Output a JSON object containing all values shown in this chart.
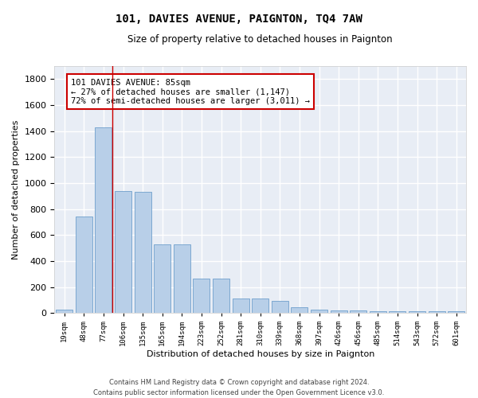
{
  "title": "101, DAVIES AVENUE, PAIGNTON, TQ4 7AW",
  "subtitle": "Size of property relative to detached houses in Paignton",
  "xlabel": "Distribution of detached houses by size in Paignton",
  "ylabel": "Number of detached properties",
  "categories": [
    "19sqm",
    "48sqm",
    "77sqm",
    "106sqm",
    "135sqm",
    "165sqm",
    "194sqm",
    "223sqm",
    "252sqm",
    "281sqm",
    "310sqm",
    "339sqm",
    "368sqm",
    "397sqm",
    "426sqm",
    "456sqm",
    "485sqm",
    "514sqm",
    "543sqm",
    "572sqm",
    "601sqm"
  ],
  "values": [
    25,
    740,
    1430,
    940,
    935,
    530,
    530,
    265,
    265,
    110,
    110,
    95,
    45,
    25,
    20,
    18,
    15,
    13,
    12,
    12,
    12
  ],
  "bar_color": "#b8cfe8",
  "bar_edge_color": "#6fa0cc",
  "background_color": "#e8edf5",
  "grid_color": "#ffffff",
  "annotation_text": "101 DAVIES AVENUE: 85sqm\n← 27% of detached houses are smaller (1,147)\n72% of semi-detached houses are larger (3,011) →",
  "annotation_box_color": "#ffffff",
  "annotation_box_edge_color": "#cc0000",
  "vline_x_index": 2.45,
  "vline_color": "#cc0000",
  "ylim": [
    0,
    1900
  ],
  "yticks": [
    0,
    200,
    400,
    600,
    800,
    1000,
    1200,
    1400,
    1600,
    1800
  ],
  "footer": "Contains HM Land Registry data © Crown copyright and database right 2024.\nContains public sector information licensed under the Open Government Licence v3.0."
}
